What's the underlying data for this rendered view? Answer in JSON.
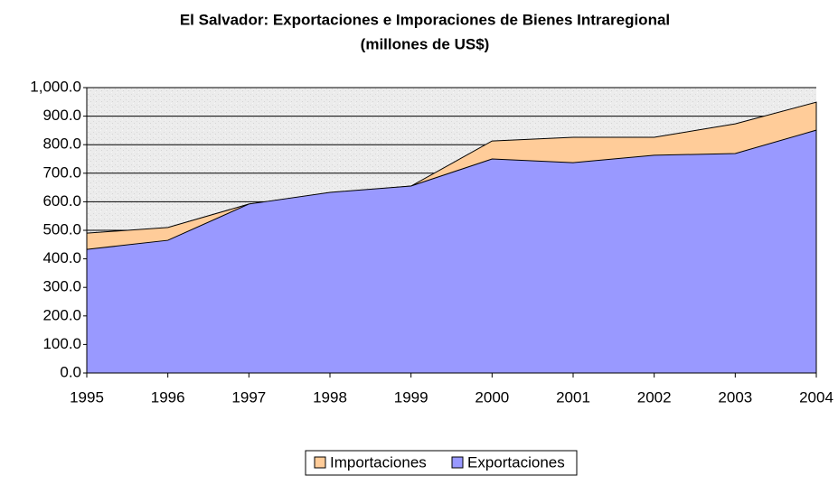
{
  "chart_data": {
    "type": "area",
    "title": "El Salvador: Exportaciones e Imporaciones de Bienes Intraregional",
    "subtitle": "(millones de US$)",
    "categories": [
      "1995",
      "1996",
      "1997",
      "1998",
      "1999",
      "2000",
      "2001",
      "2002",
      "2003",
      "2004"
    ],
    "series": [
      {
        "name": "Importaciones",
        "color": "#ffcc99",
        "values": [
          490,
          510,
          592,
          630,
          655,
          813,
          826,
          826,
          873,
          949
        ]
      },
      {
        "name": "Exportaciones",
        "color": "#9999ff",
        "values": [
          433,
          465,
          592,
          633,
          655,
          750,
          737,
          763,
          769,
          851
        ]
      }
    ],
    "ylim": [
      0,
      1000
    ],
    "yticks": [
      {
        "value": 0,
        "label": "0.0"
      },
      {
        "value": 100,
        "label": "100.0"
      },
      {
        "value": 200,
        "label": "200.0"
      },
      {
        "value": 300,
        "label": "300.0"
      },
      {
        "value": 400,
        "label": "400.0"
      },
      {
        "value": 500,
        "label": "500.0"
      },
      {
        "value": 600,
        "label": "600.0"
      },
      {
        "value": 700,
        "label": "700.0"
      },
      {
        "value": 800,
        "label": "800.0"
      },
      {
        "value": 900,
        "label": "900.0"
      },
      {
        "value": 1000,
        "label": "1,000.0"
      }
    ],
    "grid": true
  }
}
